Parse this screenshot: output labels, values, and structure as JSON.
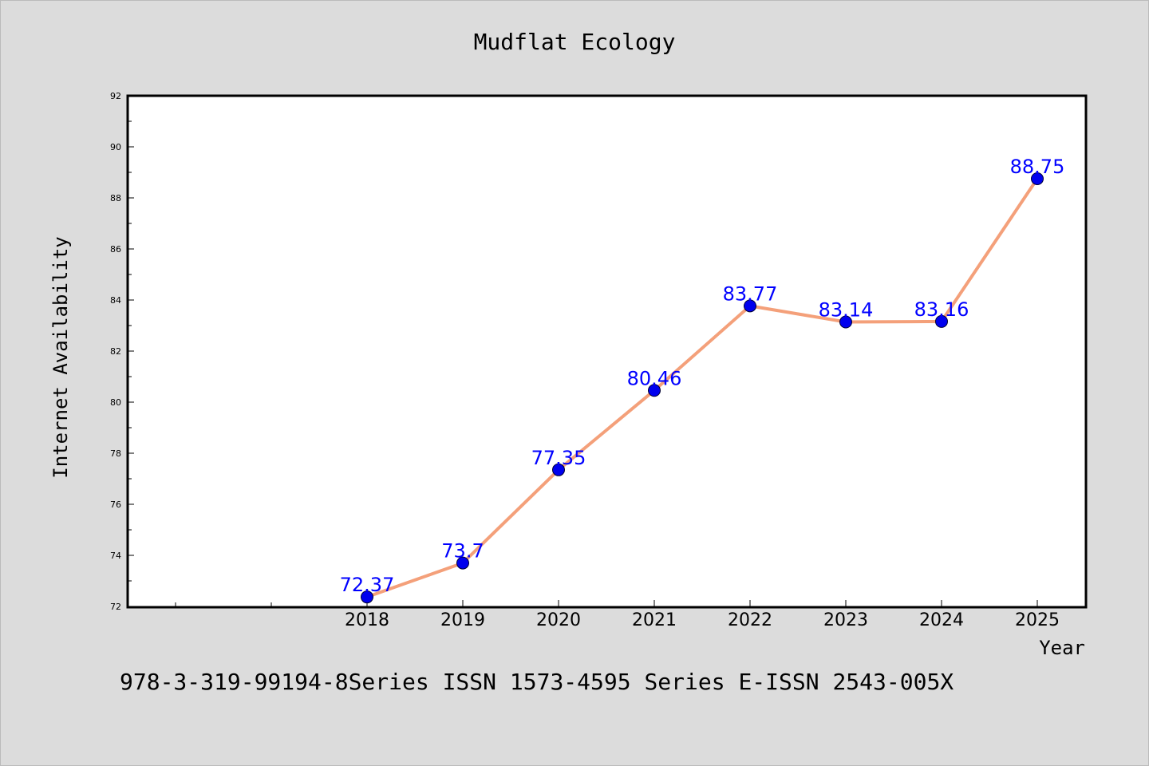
{
  "chart_data": {
    "type": "line",
    "title": "Mudflat Ecology",
    "xlabel": "Year",
    "ylabel": "Internet Availability",
    "x_categories": [
      "2018",
      "2019",
      "2020",
      "2021",
      "2022",
      "2023",
      "2024",
      "2025"
    ],
    "series": [
      {
        "values": [
          72.37,
          73.7,
          77.35,
          80.46,
          83.77,
          83.14,
          83.16,
          88.75
        ],
        "data_labels": [
          "72.37",
          "73.7",
          "77.35",
          "80.46",
          "83.77",
          "83.14",
          "83.16",
          "88.75"
        ],
        "line_color": "#f4a07a",
        "marker_color": "#0000ee",
        "label_color": "#0000ff"
      }
    ],
    "ylim": [
      72,
      92
    ],
    "y_ticks": [
      72,
      74,
      76,
      78,
      80,
      82,
      84,
      86,
      88,
      90,
      92
    ],
    "grid": false,
    "legend": "none"
  },
  "footer": {
    "text": "978-3-319-99194-8Series ISSN 1573-4595 Series E-ISSN 2543-005X"
  },
  "colors": {
    "background": "#dcdcdc",
    "plot_background": "#ffffff",
    "axis": "#000000"
  }
}
